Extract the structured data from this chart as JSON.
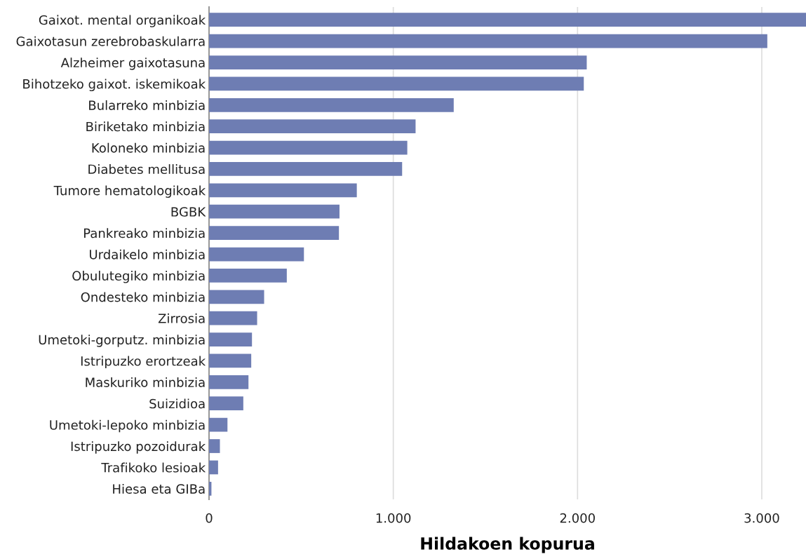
{
  "chart_data": {
    "type": "bar",
    "orientation": "horizontal",
    "xlabel": "Hildakoen kopurua",
    "categories": [
      "Gaixot. mental organikoak",
      "Gaixotasun zerebrobaskularra",
      "Alzheimer gaixotasuna",
      "Bihotzeko gaixot. iskemikoak",
      "Bularreko minbizia",
      "Biriketako minbizia",
      "Koloneko minbizia",
      "Diabetes mellitusa",
      "Tumore hematologikoak",
      "BGBK",
      "Pankreako minbizia",
      "Urdaikelo minbizia",
      "Obulutegiko minbizia",
      "Ondesteko minbizia",
      "Zirrosia",
      "Umetoki-gorputz. minbizia",
      "Istripuzko erortzeak",
      "Maskuriko minbizia",
      "Suizidioa",
      "Umetoki-lepoko minbizia",
      "Istripuzko pozoidurak",
      "Trafikoko lesioak",
      "Hiesa eta GIBa"
    ],
    "values": [
      3240,
      3030,
      2050,
      2034,
      1328,
      1121,
      1076,
      1048,
      802,
      708,
      705,
      515,
      422,
      299,
      261,
      233,
      229,
      214,
      186,
      100,
      59,
      49,
      13
    ],
    "color": "#6e7db3",
    "xlim": [
      0,
      3240
    ],
    "xticks": [
      0,
      {
        "value": 1000,
        "label": "1.000"
      },
      {
        "value": 2000,
        "label": "2.000"
      },
      {
        "value": 3000,
        "label": "3.000"
      }
    ],
    "grid": "x"
  }
}
